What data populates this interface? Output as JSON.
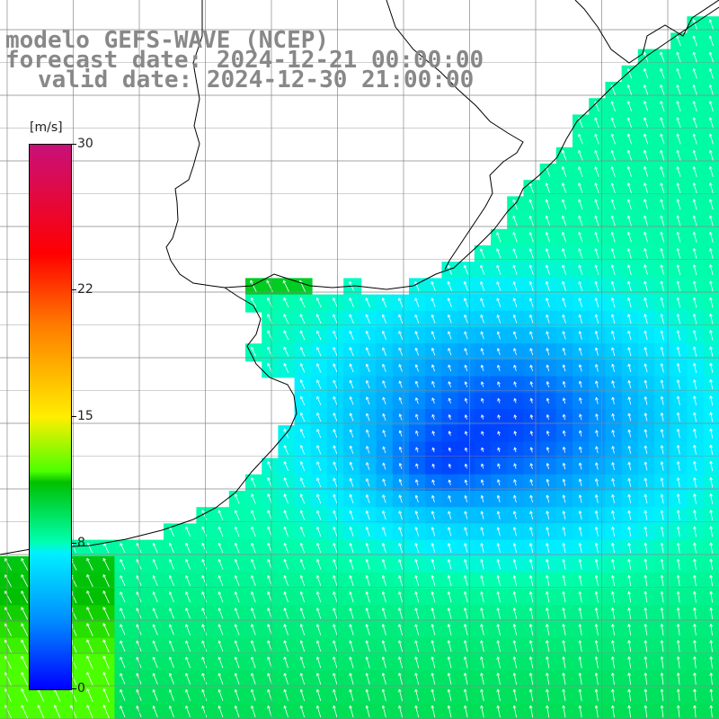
{
  "title": {
    "line1": "modelo GEFS-WAVE (NCEP)",
    "line2": "forecast date: 2024-12-21 00:00:00",
    "line3": "valid date: 2024-12-30 21:00:00"
  },
  "colorbar": {
    "unit": "[m/s]",
    "ticks": [
      {
        "label": "30",
        "value": 30
      },
      {
        "label": "22",
        "value": 22
      },
      {
        "label": "15",
        "value": 15
      },
      {
        "label": "8",
        "value": 8
      },
      {
        "label": "0",
        "value": 0
      }
    ],
    "min": 0,
    "max": 30
  },
  "colors": {
    "land": "#ffffff",
    "coastline": "#000000",
    "grid": "#888888",
    "arrow": "#ffffff",
    "title": "#888888"
  },
  "map": {
    "grid_lines": "on",
    "variable": "wind speed and direction over ocean"
  }
}
